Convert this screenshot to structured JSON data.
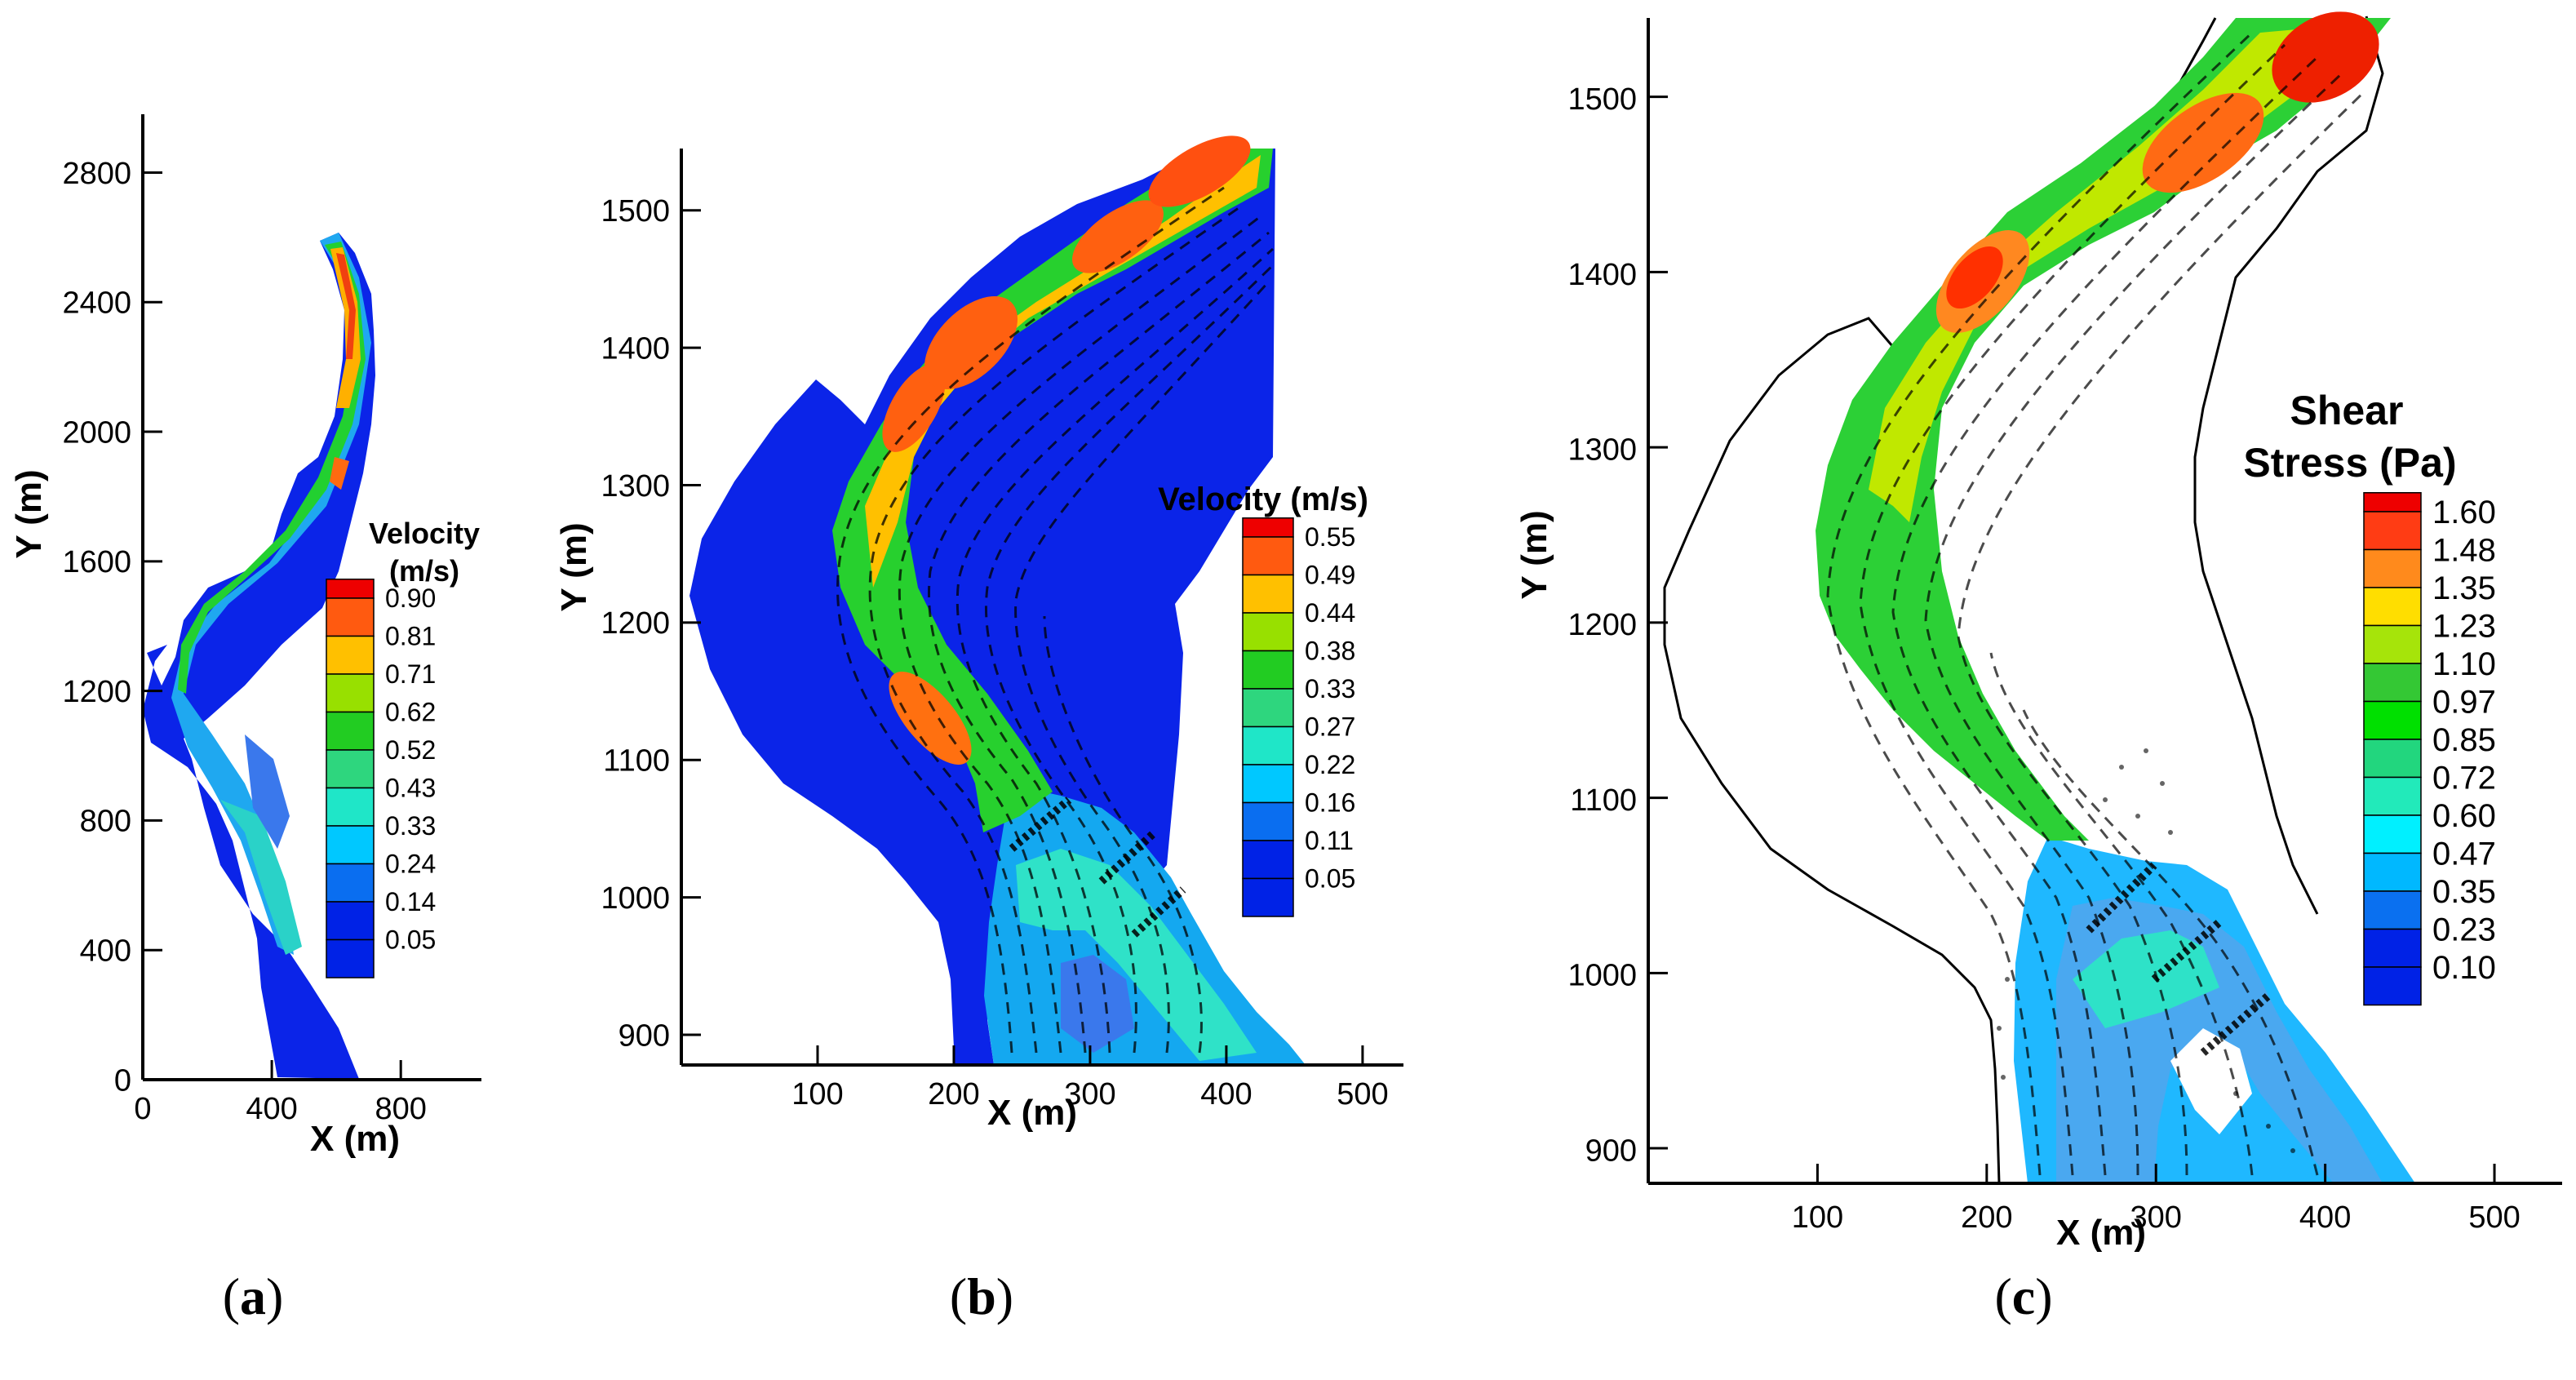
{
  "chart_data": [
    {
      "panel": "a",
      "type": "heatmap",
      "caption": "(a)",
      "xlabel": "X (m)",
      "ylabel": "Y (m)",
      "xlim": [
        0,
        1050
      ],
      "ylim": [
        0,
        2980
      ],
      "x_ticks": [
        0,
        400,
        800
      ],
      "y_ticks": [
        0,
        400,
        800,
        1200,
        1600,
        2000,
        2400,
        2800
      ],
      "legend": {
        "title": [
          "Velocity",
          "(m/s)"
        ],
        "placement": "inside right",
        "levels": [
          "0.90",
          "0.81",
          "0.71",
          "0.62",
          "0.52",
          "0.43",
          "0.33",
          "0.24",
          "0.14",
          "0.05"
        ]
      }
    },
    {
      "panel": "b",
      "type": "heatmap",
      "caption": "(b)",
      "xlabel": "X (m)",
      "ylabel": "Y (m)",
      "xlim": [
        0,
        530
      ],
      "ylim": [
        878,
        1545
      ],
      "x_ticks": [
        100,
        200,
        300,
        400,
        500
      ],
      "y_ticks": [
        900,
        1000,
        1100,
        1200,
        1300,
        1400,
        1500
      ],
      "legend": {
        "title": [
          "Velocity (m/s)"
        ],
        "placement": "inside right",
        "levels": [
          "0.55",
          "0.49",
          "0.44",
          "0.38",
          "0.33",
          "0.27",
          "0.22",
          "0.16",
          "0.11",
          "0.05"
        ]
      }
    },
    {
      "panel": "c",
      "type": "heatmap",
      "caption": "(c)",
      "xlabel": "X (m)",
      "ylabel": "Y (m)",
      "xlim": [
        0,
        540
      ],
      "ylim": [
        880,
        1545
      ],
      "x_ticks": [
        100,
        200,
        300,
        400,
        500
      ],
      "y_ticks": [
        900,
        1000,
        1100,
        1200,
        1300,
        1400,
        1500
      ],
      "legend": {
        "title": [
          "Shear",
          "Stress (Pa)"
        ],
        "placement": "inside right",
        "levels": [
          "1.60",
          "1.48",
          "1.35",
          "1.23",
          "1.10",
          "0.97",
          "0.85",
          "0.72",
          "0.60",
          "0.47",
          "0.35",
          "0.23",
          "0.10"
        ]
      }
    }
  ],
  "colors": {
    "scale10": [
      "#ee0000",
      "#ff5a10",
      "#ffc000",
      "#98e000",
      "#22cc22",
      "#2ed67e",
      "#1fe6c8",
      "#00c8ff",
      "#0a6ef0",
      "#0022e6"
    ],
    "scale13": [
      "#ee0000",
      "#ff3c14",
      "#ff8a1c",
      "#ffde00",
      "#a6e40a",
      "#34c834",
      "#00e000",
      "#22d67e",
      "#22eaba",
      "#00f0ff",
      "#00b8ff",
      "#0a70f0",
      "#0022e6"
    ],
    "background_flow": "#0b24e8"
  }
}
